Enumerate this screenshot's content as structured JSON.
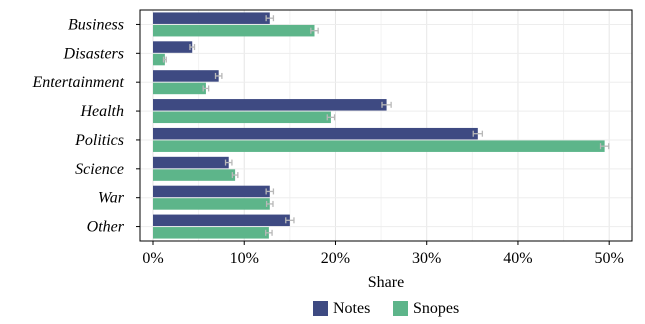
{
  "chart_data": {
    "type": "bar",
    "orientation": "horizontal",
    "categories": [
      "Business",
      "Disasters",
      "Entertainment",
      "Health",
      "Politics",
      "Science",
      "War",
      "Other"
    ],
    "series": [
      {
        "name": "Notes",
        "color": "#3e4a82",
        "values": [
          12.8,
          4.3,
          7.2,
          25.6,
          35.6,
          8.3,
          12.8,
          15.0
        ],
        "error": [
          0.4,
          0.25,
          0.35,
          0.5,
          0.5,
          0.35,
          0.4,
          0.45
        ]
      },
      {
        "name": "Snopes",
        "color": "#5db58a",
        "values": [
          17.7,
          1.3,
          5.8,
          19.5,
          49.5,
          9.0,
          12.8,
          12.7
        ],
        "error": [
          0.4,
          0.15,
          0.3,
          0.4,
          0.45,
          0.3,
          0.35,
          0.35
        ]
      }
    ],
    "xlabel": "Share",
    "ylabel": "",
    "xlim": [
      0,
      52.5
    ],
    "xticks": [
      0,
      10,
      20,
      30,
      40,
      50
    ],
    "xtick_labels": [
      "0%",
      "10%",
      "20%",
      "30%",
      "40%",
      "50%"
    ],
    "grid": true,
    "legend_position": "bottom",
    "error_bar_color": "#b8b8b8"
  }
}
